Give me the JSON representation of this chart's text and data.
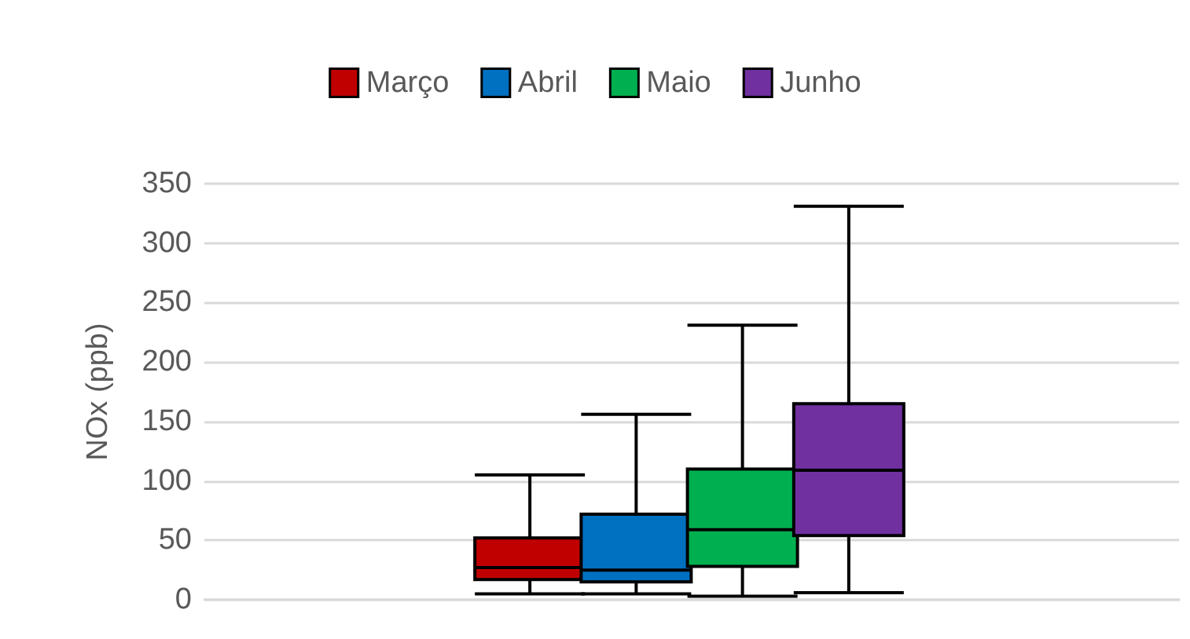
{
  "chart_data": {
    "type": "box",
    "ylabel": "NOx (ppb)",
    "categories": [
      null
    ],
    "series": [
      {
        "name": "Março",
        "color": "#c00000",
        "boxes": [
          {
            "low": 5,
            "q1": 17,
            "median": 27,
            "q3": 52,
            "high": 105
          }
        ]
      },
      {
        "name": "Abril",
        "color": "#0070c0",
        "boxes": [
          {
            "low": 5,
            "q1": 15,
            "median": 25,
            "q3": 72,
            "high": 156
          }
        ]
      },
      {
        "name": "Maio",
        "color": "#00b050",
        "boxes": [
          {
            "low": 3,
            "q1": 28,
            "median": 59,
            "q3": 110,
            "high": 231
          }
        ]
      },
      {
        "name": "Junho",
        "color": "#7030a0",
        "boxes": [
          {
            "low": 6,
            "q1": 54,
            "median": 109,
            "q3": 165,
            "high": 331
          }
        ]
      }
    ],
    "ylim": [
      0,
      350
    ],
    "yticks": [
      0,
      50,
      100,
      150,
      200,
      250,
      300,
      350
    ],
    "grid": "y",
    "legend": "top",
    "tick_labels": "y"
  }
}
